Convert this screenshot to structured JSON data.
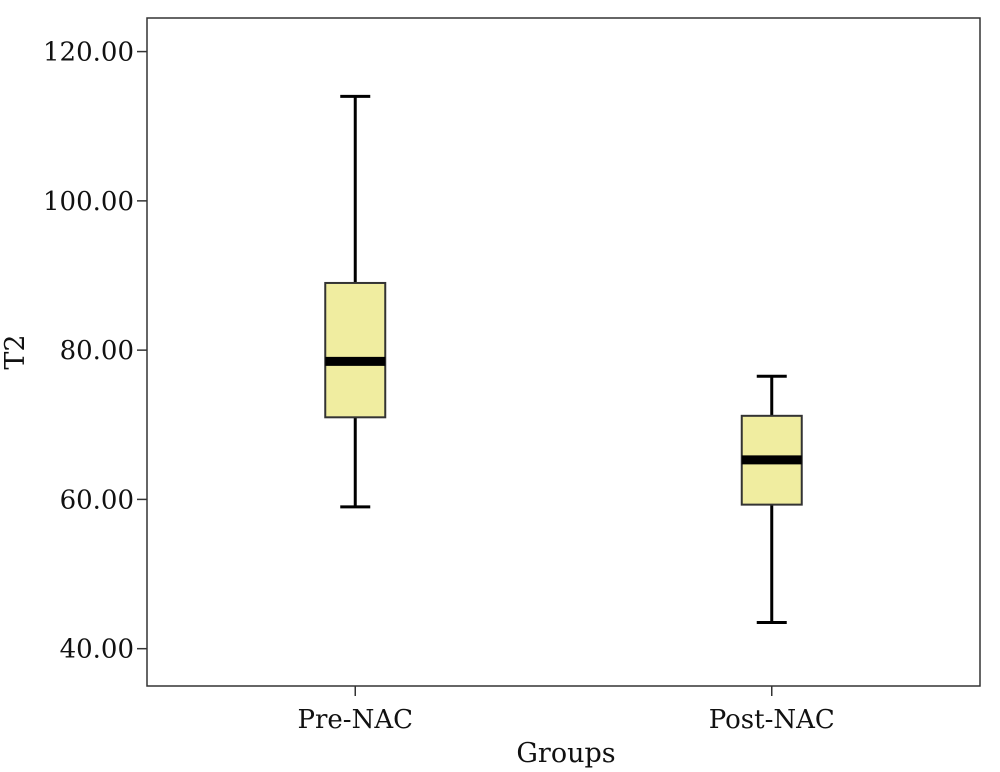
{
  "chart_data": {
    "type": "boxplot",
    "title": "",
    "xlabel": "Groups",
    "ylabel": "T2",
    "ylim": [
      35,
      124.5
    ],
    "yticks": [
      40,
      60,
      80,
      100,
      120
    ],
    "ytick_labels": [
      "40.00",
      "60.00",
      "80.00",
      "100.00",
      "120.00"
    ],
    "categories": [
      "Pre-NAC",
      "Post-NAC"
    ],
    "boxes": [
      {
        "category": "Pre-NAC",
        "min": 59.0,
        "q1": 71.0,
        "median": 78.5,
        "q3": 89.0,
        "max": 114.0
      },
      {
        "category": "Post-NAC",
        "min": 43.5,
        "q1": 59.3,
        "median": 65.3,
        "q3": 71.2,
        "max": 76.5
      }
    ],
    "grid": false,
    "colors": {
      "box_fill": "#f0eda0",
      "box_stroke": "#333333",
      "median": "#000000",
      "axis": "#333333"
    }
  }
}
